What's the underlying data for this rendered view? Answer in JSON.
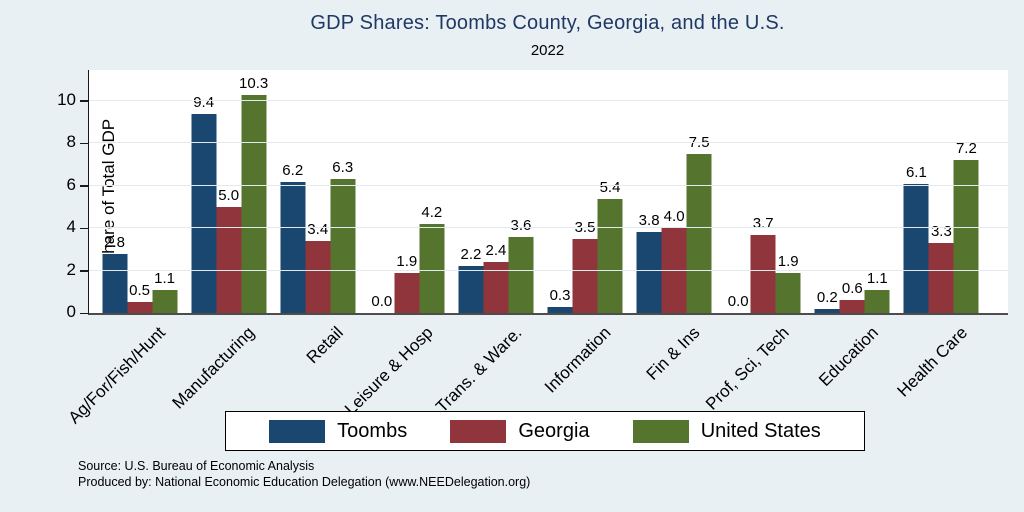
{
  "chart_data": {
    "type": "bar",
    "title": "GDP Shares: Toombs County, Georgia, and the U.S.",
    "subtitle": "2022",
    "xlabel": "",
    "ylabel": "Share of Total GDP",
    "categories": [
      "Ag/For/Fish/Hunt",
      "Manufacturing",
      "Retail",
      "Leisure & Hosp",
      "Trans. & Ware.",
      "Information",
      "Fin & Ins",
      "Prof, Sci, Tech",
      "Education",
      "Health Care"
    ],
    "series": [
      {
        "name": "Toombs",
        "color": "#1a476f",
        "values": [
          2.8,
          9.4,
          6.2,
          0.0,
          2.2,
          0.3,
          3.8,
          0.0,
          0.2,
          6.1
        ]
      },
      {
        "name": "Georgia",
        "color": "#90353b",
        "values": [
          0.5,
          5.0,
          3.4,
          1.9,
          2.4,
          3.5,
          4.0,
          3.7,
          0.6,
          3.3
        ]
      },
      {
        "name": "United States",
        "color": "#55752f",
        "values": [
          1.1,
          10.3,
          6.3,
          4.2,
          3.6,
          5.4,
          7.5,
          1.9,
          1.1,
          7.2
        ]
      }
    ],
    "yticks": [
      0,
      2,
      4,
      6,
      8,
      10
    ],
    "ylim": [
      0,
      11.46
    ],
    "grid": true,
    "legend_position": "bottom",
    "value_labels": true
  },
  "footer": {
    "source": "Source: U.S. Bureau of Economic Analysis",
    "produced_by": "Produced by: National Economic Education Delegation (www.NEEDelegation.org)"
  }
}
